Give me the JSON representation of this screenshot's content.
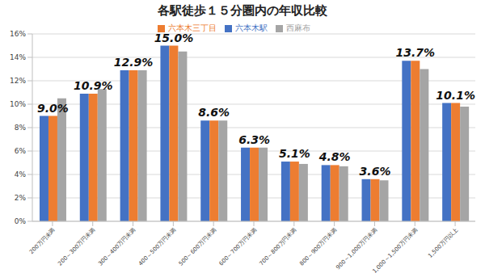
{
  "chart_data": {
    "type": "bar",
    "title": "各駅徒歩１５分圏内の年収比較",
    "categories": [
      "200万円未満",
      "200～300万円未満",
      "300～400万円未満",
      "400～500万円未満",
      "500～600万円未満",
      "600～700万円未満",
      "700～800万円未満",
      "800～900万円未満",
      "900～1,000万円未満",
      "1,000～1,500万円未満",
      "1,500万円以上"
    ],
    "series": [
      {
        "name": "六本木駅",
        "color": "#4472c4",
        "values": [
          9.0,
          10.9,
          12.9,
          15.0,
          8.6,
          6.3,
          5.1,
          4.8,
          3.6,
          13.7,
          10.1
        ]
      },
      {
        "name": "六本木三丁目",
        "color": "#ed7d31",
        "values": [
          9.0,
          10.9,
          12.9,
          15.0,
          8.6,
          6.3,
          5.1,
          4.8,
          3.6,
          13.7,
          10.1
        ],
        "data_labels": true,
        "value_labels": [
          "9.0%",
          "10.9%",
          "12.9%",
          "15.0%",
          "8.6%",
          "6.3%",
          "5.1%",
          "4.8%",
          "3.6%",
          "13.7%",
          "10.1%"
        ]
      },
      {
        "name": "西麻布",
        "color": "#a5a5a5",
        "values": [
          10.5,
          11.3,
          12.9,
          14.5,
          8.6,
          6.3,
          4.9,
          4.7,
          3.5,
          13.0,
          9.8
        ]
      }
    ],
    "ylim": [
      0,
      16
    ],
    "yticks": [
      {
        "value": 0,
        "label": "0%"
      },
      {
        "value": 2,
        "label": "2%"
      },
      {
        "value": 4,
        "label": "4%"
      },
      {
        "value": 6,
        "label": "6%"
      },
      {
        "value": 8,
        "label": "8%"
      },
      {
        "value": 10,
        "label": "10%"
      },
      {
        "value": 12,
        "label": "12%"
      },
      {
        "value": 14,
        "label": "14%"
      },
      {
        "value": 16,
        "label": "16%"
      }
    ],
    "grid": true,
    "legend": "top"
  }
}
